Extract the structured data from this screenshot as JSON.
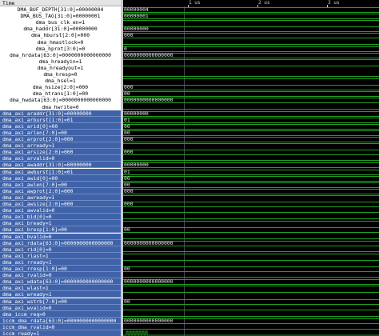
{
  "header": {
    "time_label": "Time"
  },
  "timeline": {
    "ticks": [
      "1 us",
      "2 us",
      "3 us"
    ]
  },
  "colors": {
    "wave": "#1fa21f",
    "selection": "#3f62a8"
  },
  "signals": [
    {
      "name": "DMA_BUF_DEPTH[31:0]=00000004",
      "value": "00000004",
      "sel": false,
      "kind": "bus"
    },
    {
      "name": "DMA_BUS_TAG[31:0]=00000001",
      "value": "00000001",
      "sel": false,
      "kind": "bus"
    },
    {
      "name": "dma_bus_clk_en=1",
      "value": "",
      "sel": false,
      "kind": "hi"
    },
    {
      "name": "dma_haddr[31:0]=00000000",
      "value": "00000000",
      "sel": false,
      "kind": "bus"
    },
    {
      "name": "dma_hburst[2:0]=000",
      "value": "000",
      "sel": false,
      "kind": "bus"
    },
    {
      "name": "dma_hmastlock=0",
      "value": "",
      "sel": false,
      "kind": "lo"
    },
    {
      "name": "dma_hprot[3:0]=0",
      "value": "0",
      "sel": false,
      "kind": "bus"
    },
    {
      "name": "dma_hrdata[63:0]=0000000000000000",
      "value": "0000000000000000",
      "sel": false,
      "kind": "bus"
    },
    {
      "name": "dma_hreadyin=1",
      "value": "",
      "sel": false,
      "kind": "hi"
    },
    {
      "name": "dma_hreadyout=1",
      "value": "",
      "sel": false,
      "kind": "hi"
    },
    {
      "name": "dma_hresp=0",
      "value": "",
      "sel": false,
      "kind": "lo"
    },
    {
      "name": "dma_hsel=1",
      "value": "",
      "sel": false,
      "kind": "hi"
    },
    {
      "name": "dma_hsize[2:0]=000",
      "value": "000",
      "sel": false,
      "kind": "bus"
    },
    {
      "name": "dma_htrans[1:0]=00",
      "value": "00",
      "sel": false,
      "kind": "bus"
    },
    {
      "name": "dma_hwdata[63:0]=0000000000000000",
      "value": "0000000000000000",
      "sel": false,
      "kind": "bus"
    },
    {
      "name": "dma_hwrite=0",
      "value": "",
      "sel": false,
      "kind": "lo"
    },
    {
      "name": "dma_axi_araddr[31:0]=00000000",
      "value": "00000000",
      "sel": true,
      "kind": "bus"
    },
    {
      "name": "dma_axi_arburst[1:0]=01",
      "value": "01",
      "sel": true,
      "kind": "bus"
    },
    {
      "name": "dma_axi_arid[0]=00",
      "value": "00",
      "sel": true,
      "kind": "bus"
    },
    {
      "name": "dma_axi_arlen[7:0]=00",
      "value": "00",
      "sel": true,
      "kind": "bus"
    },
    {
      "name": "dma_axi_arprot[2:0]=000",
      "value": "000",
      "sel": true,
      "kind": "bus"
    },
    {
      "name": "dma_axi_arready=1",
      "value": "",
      "sel": true,
      "kind": "hi"
    },
    {
      "name": "dma_axi_arsize[2:0]=000",
      "value": "000",
      "sel": true,
      "kind": "bus"
    },
    {
      "name": "dma_axi_arvalid=0",
      "value": "",
      "sel": true,
      "kind": "lo"
    },
    {
      "name": "dma_axi_awaddr[31:0]=00000000",
      "value": "00000000",
      "sel": true,
      "kind": "bus"
    },
    {
      "name": "dma_axi_awburst[1:0]=01",
      "value": "01",
      "sel": true,
      "kind": "bus"
    },
    {
      "name": "dma_axi_awid[0]=00",
      "value": "00",
      "sel": true,
      "kind": "bus"
    },
    {
      "name": "dma_axi_awlen[7:0]=00",
      "value": "00",
      "sel": true,
      "kind": "bus"
    },
    {
      "name": "dma_axi_awprot[2:0]=000",
      "value": "000",
      "sel": true,
      "kind": "bus"
    },
    {
      "name": "dma_axi_awready=1",
      "value": "",
      "sel": true,
      "kind": "hi"
    },
    {
      "name": "dma_axi_awsize[2:0]=000",
      "value": "000",
      "sel": true,
      "kind": "bus"
    },
    {
      "name": "dma_axi_awvalid=0",
      "value": "",
      "sel": true,
      "kind": "lo"
    },
    {
      "name": "dma_axi_bid[0]=0",
      "value": "",
      "sel": true,
      "kind": "lo"
    },
    {
      "name": "dma_axi_bready=1",
      "value": "",
      "sel": true,
      "kind": "hi"
    },
    {
      "name": "dma_axi_bresp[1:0]=00",
      "value": "00",
      "sel": true,
      "kind": "bus"
    },
    {
      "name": "dma_axi_bvalid=0",
      "value": "",
      "sel": true,
      "kind": "lo"
    },
    {
      "name": "dma_axi_rdata[63:0]=0000000000000000",
      "value": "0000000000000000",
      "sel": true,
      "kind": "bus"
    },
    {
      "name": "dma_axi_rid[0]=0",
      "value": "",
      "sel": true,
      "kind": "lo"
    },
    {
      "name": "dma_axi_rlast=1",
      "value": "",
      "sel": true,
      "kind": "hi"
    },
    {
      "name": "dma_axi_rready=1",
      "value": "",
      "sel": true,
      "kind": "hi"
    },
    {
      "name": "dma_axi_rresp[1:0]=00",
      "value": "00",
      "sel": true,
      "kind": "bus"
    },
    {
      "name": "dma_axi_rvalid=0",
      "value": "",
      "sel": true,
      "kind": "lo"
    },
    {
      "name": "dma_axi_wdata[63:0]=0000000000000000",
      "value": "0000000000000000",
      "sel": true,
      "kind": "bus"
    },
    {
      "name": "dma_axi_wlast=1",
      "value": "",
      "sel": true,
      "kind": "hi"
    },
    {
      "name": "dma_axi_wready=1",
      "value": "",
      "sel": true,
      "kind": "hi"
    },
    {
      "name": "dma_axi_wstrb[7:0]=00",
      "value": "00",
      "sel": true,
      "kind": "bus"
    },
    {
      "name": "dma_axi_wvalid=0",
      "value": "",
      "sel": true,
      "kind": "lo"
    },
    {
      "name": "dma_iccm_req=0",
      "value": "",
      "sel": true,
      "kind": "lo"
    },
    {
      "name": "iccm_dma_rdata[63:0]=0000000000000000",
      "value": "0000000000000000",
      "sel": true,
      "kind": "bus"
    },
    {
      "name": "iccm_dma_rvalid=0",
      "value": "",
      "sel": true,
      "kind": "lo"
    },
    {
      "name": "iccm_ready=1",
      "value": "",
      "sel": true,
      "kind": "clk"
    }
  ]
}
